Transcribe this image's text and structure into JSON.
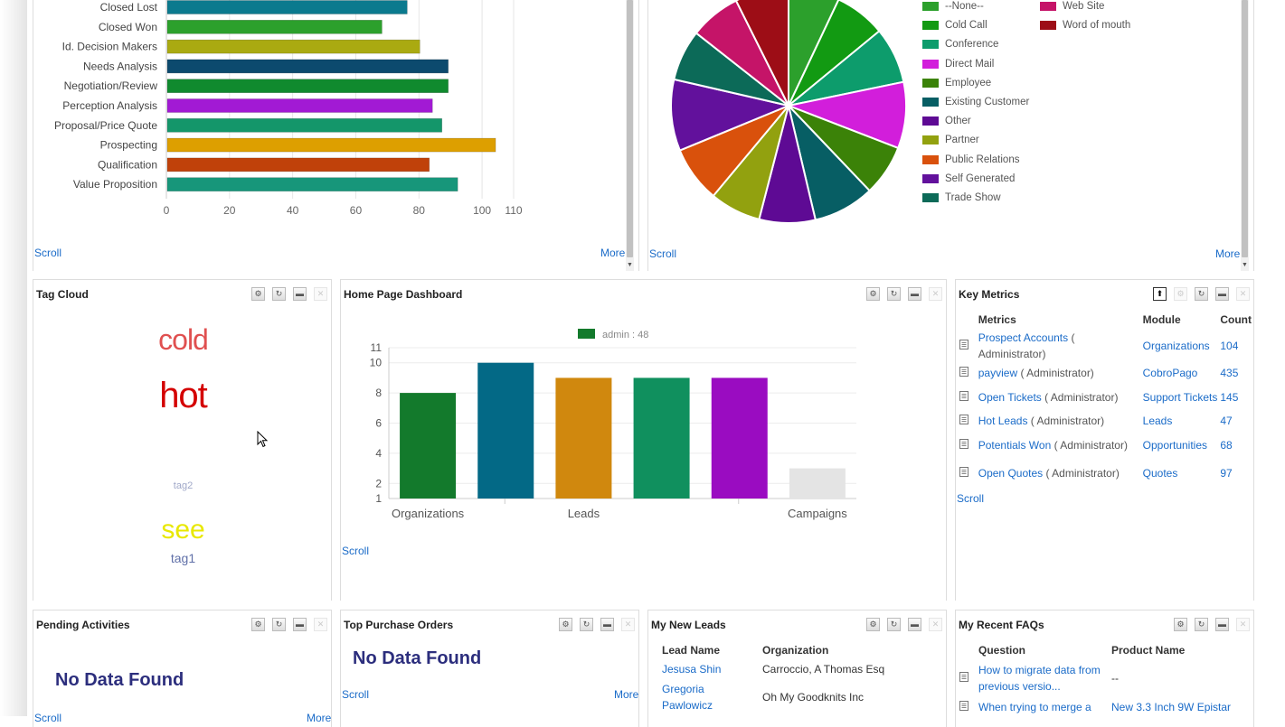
{
  "panels": {
    "top_left": {
      "scroll": "Scroll",
      "more": "More"
    },
    "top_right": {
      "scroll": "Scroll",
      "more": "More"
    },
    "tag_cloud": {
      "title": "Tag Cloud",
      "tags": [
        {
          "text": "cold",
          "color": "#e05050"
        },
        {
          "text": "hot",
          "color": "#d40000"
        },
        {
          "text": "tag2",
          "color": "#a0a8c8"
        },
        {
          "text": "see",
          "color": "#e8e800"
        },
        {
          "text": "tag1",
          "color": "#6070a8"
        }
      ]
    },
    "home_dashboard": {
      "title": "Home Page Dashboard",
      "scroll": "Scroll"
    },
    "key_metrics": {
      "title": "Key Metrics",
      "headers": {
        "metrics": "Metrics",
        "module": "Module",
        "count": "Count"
      },
      "rows": [
        {
          "name": "Prospect Accounts",
          "owner": "( Administrator)",
          "module": "Organizations",
          "count": "104"
        },
        {
          "name": "payview",
          "owner": "( Administrator)",
          "module": "CobroPago",
          "count": "435"
        },
        {
          "name": "Open Tickets",
          "owner": "( Administrator)",
          "module": "Support Tickets",
          "count": "145"
        },
        {
          "name": "Hot Leads",
          "owner": "( Administrator)",
          "module": "Leads",
          "count": "47"
        },
        {
          "name": "Potentials Won",
          "owner": "( Administrator)",
          "module": "Opportunities",
          "count": "68"
        },
        {
          "name": "Open Quotes",
          "owner": "( Administrator)",
          "module": "Quotes",
          "count": "97"
        }
      ],
      "scroll": "Scroll"
    },
    "pending": {
      "title": "Pending Activities",
      "nodata": "No Data Found",
      "scroll": "Scroll",
      "more": "More"
    },
    "purchase": {
      "title": "Top Purchase Orders",
      "nodata": "No Data Found",
      "scroll": "Scroll",
      "more": "More"
    },
    "leads": {
      "title": "My New Leads",
      "headers": {
        "name": "Lead Name",
        "org": "Organization"
      },
      "rows": [
        {
          "name": "Jesusa Shin",
          "org": "Carroccio, A Thomas Esq"
        },
        {
          "name": "Gregoria Pawlowicz",
          "org": "Oh My Goodknits Inc"
        }
      ]
    },
    "faqs": {
      "title": "My Recent FAQs",
      "headers": {
        "question": "Question",
        "product": "Product Name"
      },
      "rows": [
        {
          "question": "How to migrate data from previous versio...",
          "product": "--"
        },
        {
          "question": "When trying to merge a",
          "product": "New 3.3 Inch 9W Epistar"
        }
      ]
    }
  },
  "chart_data": [
    {
      "type": "bar",
      "orientation": "horizontal",
      "categories": [
        "Closed Lost",
        "Closed Won",
        "Id. Decision Makers",
        "Needs Analysis",
        "Negotiation/Review",
        "Perception Analysis",
        "Proposal/Price Quote",
        "Prospecting",
        "Qualification",
        "Value Proposition"
      ],
      "values": [
        76,
        68,
        80,
        89,
        89,
        84,
        87,
        104,
        83,
        92
      ],
      "colors": [
        "#0b7a8e",
        "#2ca02c",
        "#aaaa11",
        "#0c4a6e",
        "#108a2e",
        "#a21ad4",
        "#14966a",
        "#dd9f00",
        "#c0410a",
        "#17967a"
      ],
      "xticks": [
        0,
        20,
        40,
        60,
        80,
        100,
        110
      ],
      "xlim": [
        0,
        110
      ]
    },
    {
      "type": "pie",
      "slices": [
        {
          "label": "--None--",
          "value": 1,
          "color": "#2ca02c"
        },
        {
          "label": "Cold Call",
          "value": 1,
          "color": "#129a12"
        },
        {
          "label": "Conference",
          "value": 1.1,
          "color": "#0d9c6c"
        },
        {
          "label": "Direct Mail",
          "value": 1.3,
          "color": "#d21edb"
        },
        {
          "label": "Employee",
          "value": 1,
          "color": "#3b8208"
        },
        {
          "label": "Existing Customer",
          "value": 1.2,
          "color": "#075e64"
        },
        {
          "label": "Other",
          "value": 1.1,
          "color": "#5e0a94"
        },
        {
          "label": "Partner",
          "value": 1,
          "color": "#92a10f"
        },
        {
          "label": "Public Relations",
          "value": 1.1,
          "color": "#d9510c"
        },
        {
          "label": "Self Generated",
          "value": 1.4,
          "color": "#62119c"
        },
        {
          "label": "Trade Show",
          "value": 1,
          "color": "#0c6a58"
        },
        {
          "label": "Web Site",
          "value": 1,
          "color": "#c51468"
        },
        {
          "label": "Word of mouth",
          "value": 1.05,
          "color": "#9d0d16"
        }
      ]
    },
    {
      "type": "bar",
      "legend": "admin : 48",
      "categories": [
        "Organizations",
        "",
        "Leads",
        "",
        "",
        ""
      ],
      "x_labels": [
        "Organizations",
        "Leads",
        "Campaigns"
      ],
      "values": [
        8,
        10,
        9,
        9,
        9,
        3
      ],
      "colors": [
        "#137a2c",
        "#036986",
        "#d0880e",
        "#10905e",
        "#9a0cc1",
        "#e4e4e4"
      ],
      "yticks": [
        1,
        2,
        4,
        6,
        8,
        10,
        11
      ],
      "ylim": [
        1,
        11
      ]
    }
  ]
}
